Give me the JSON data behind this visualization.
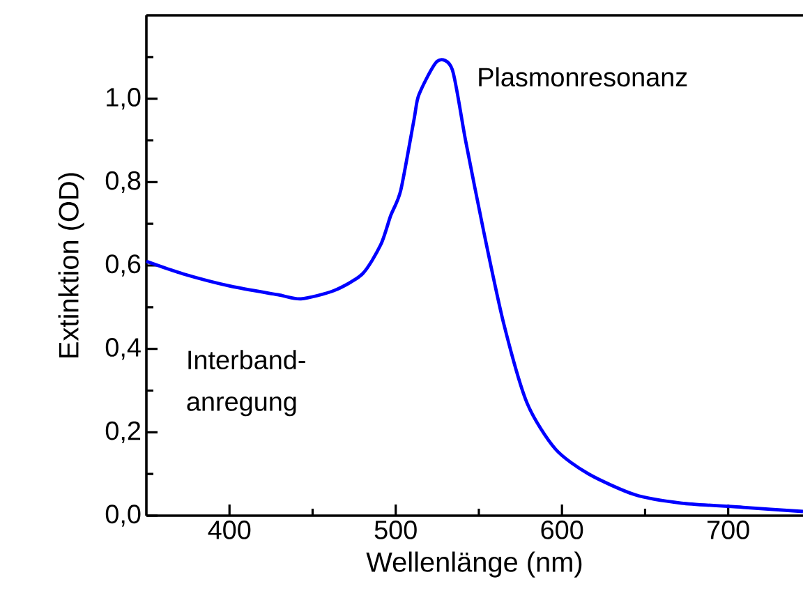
{
  "chart_data": {
    "type": "line",
    "xlabel": "Wellenlänge (nm)",
    "ylabel": "Extinktion (OD)",
    "annotations": [
      "Plasmonresonanz",
      "Interband-anregung"
    ],
    "xlim": [
      350,
      745
    ],
    "ylim": [
      0,
      1.2
    ],
    "xticks": [
      400,
      {
        "value": 450,
        "label": null
      },
      500,
      {
        "value": 550,
        "label": null
      },
      600,
      {
        "value": 650,
        "label": null
      },
      700
    ],
    "yticks": [
      {
        "value": 0,
        "label": "0,0"
      },
      {
        "value": 0.1,
        "label": null
      },
      {
        "value": 0.2,
        "label": "0,2"
      },
      {
        "value": 0.3,
        "label": null
      },
      {
        "value": 0.4,
        "label": "0,4"
      },
      {
        "value": 0.5,
        "label": null
      },
      {
        "value": 0.6,
        "label": "0,6"
      },
      {
        "value": 0.7,
        "label": null
      },
      {
        "value": 0.8,
        "label": "0,8"
      },
      {
        "value": 0.9,
        "label": null
      },
      {
        "value": 1.0,
        "label": "1,0"
      },
      {
        "value": 1.1,
        "label": null
      }
    ],
    "grid": false,
    "marker": "none",
    "line_style": "solid",
    "series": [
      {
        "color": "#0000ff",
        "x": [
          350,
          372,
          401,
          429,
          443,
          463,
          480,
          491,
          497,
          503,
          511,
          514,
          525,
          534,
          542,
          553,
          565,
          579,
          596,
          616,
          644,
          672,
          709,
          745
        ],
        "values": [
          0.61,
          0.58,
          0.55,
          0.53,
          0.52,
          0.54,
          0.58,
          0.65,
          0.72,
          0.78,
          0.95,
          1.01,
          1.09,
          1.07,
          0.9,
          0.68,
          0.46,
          0.27,
          0.16,
          0.1,
          0.05,
          0.03,
          0.02,
          0.01
        ]
      }
    ]
  }
}
